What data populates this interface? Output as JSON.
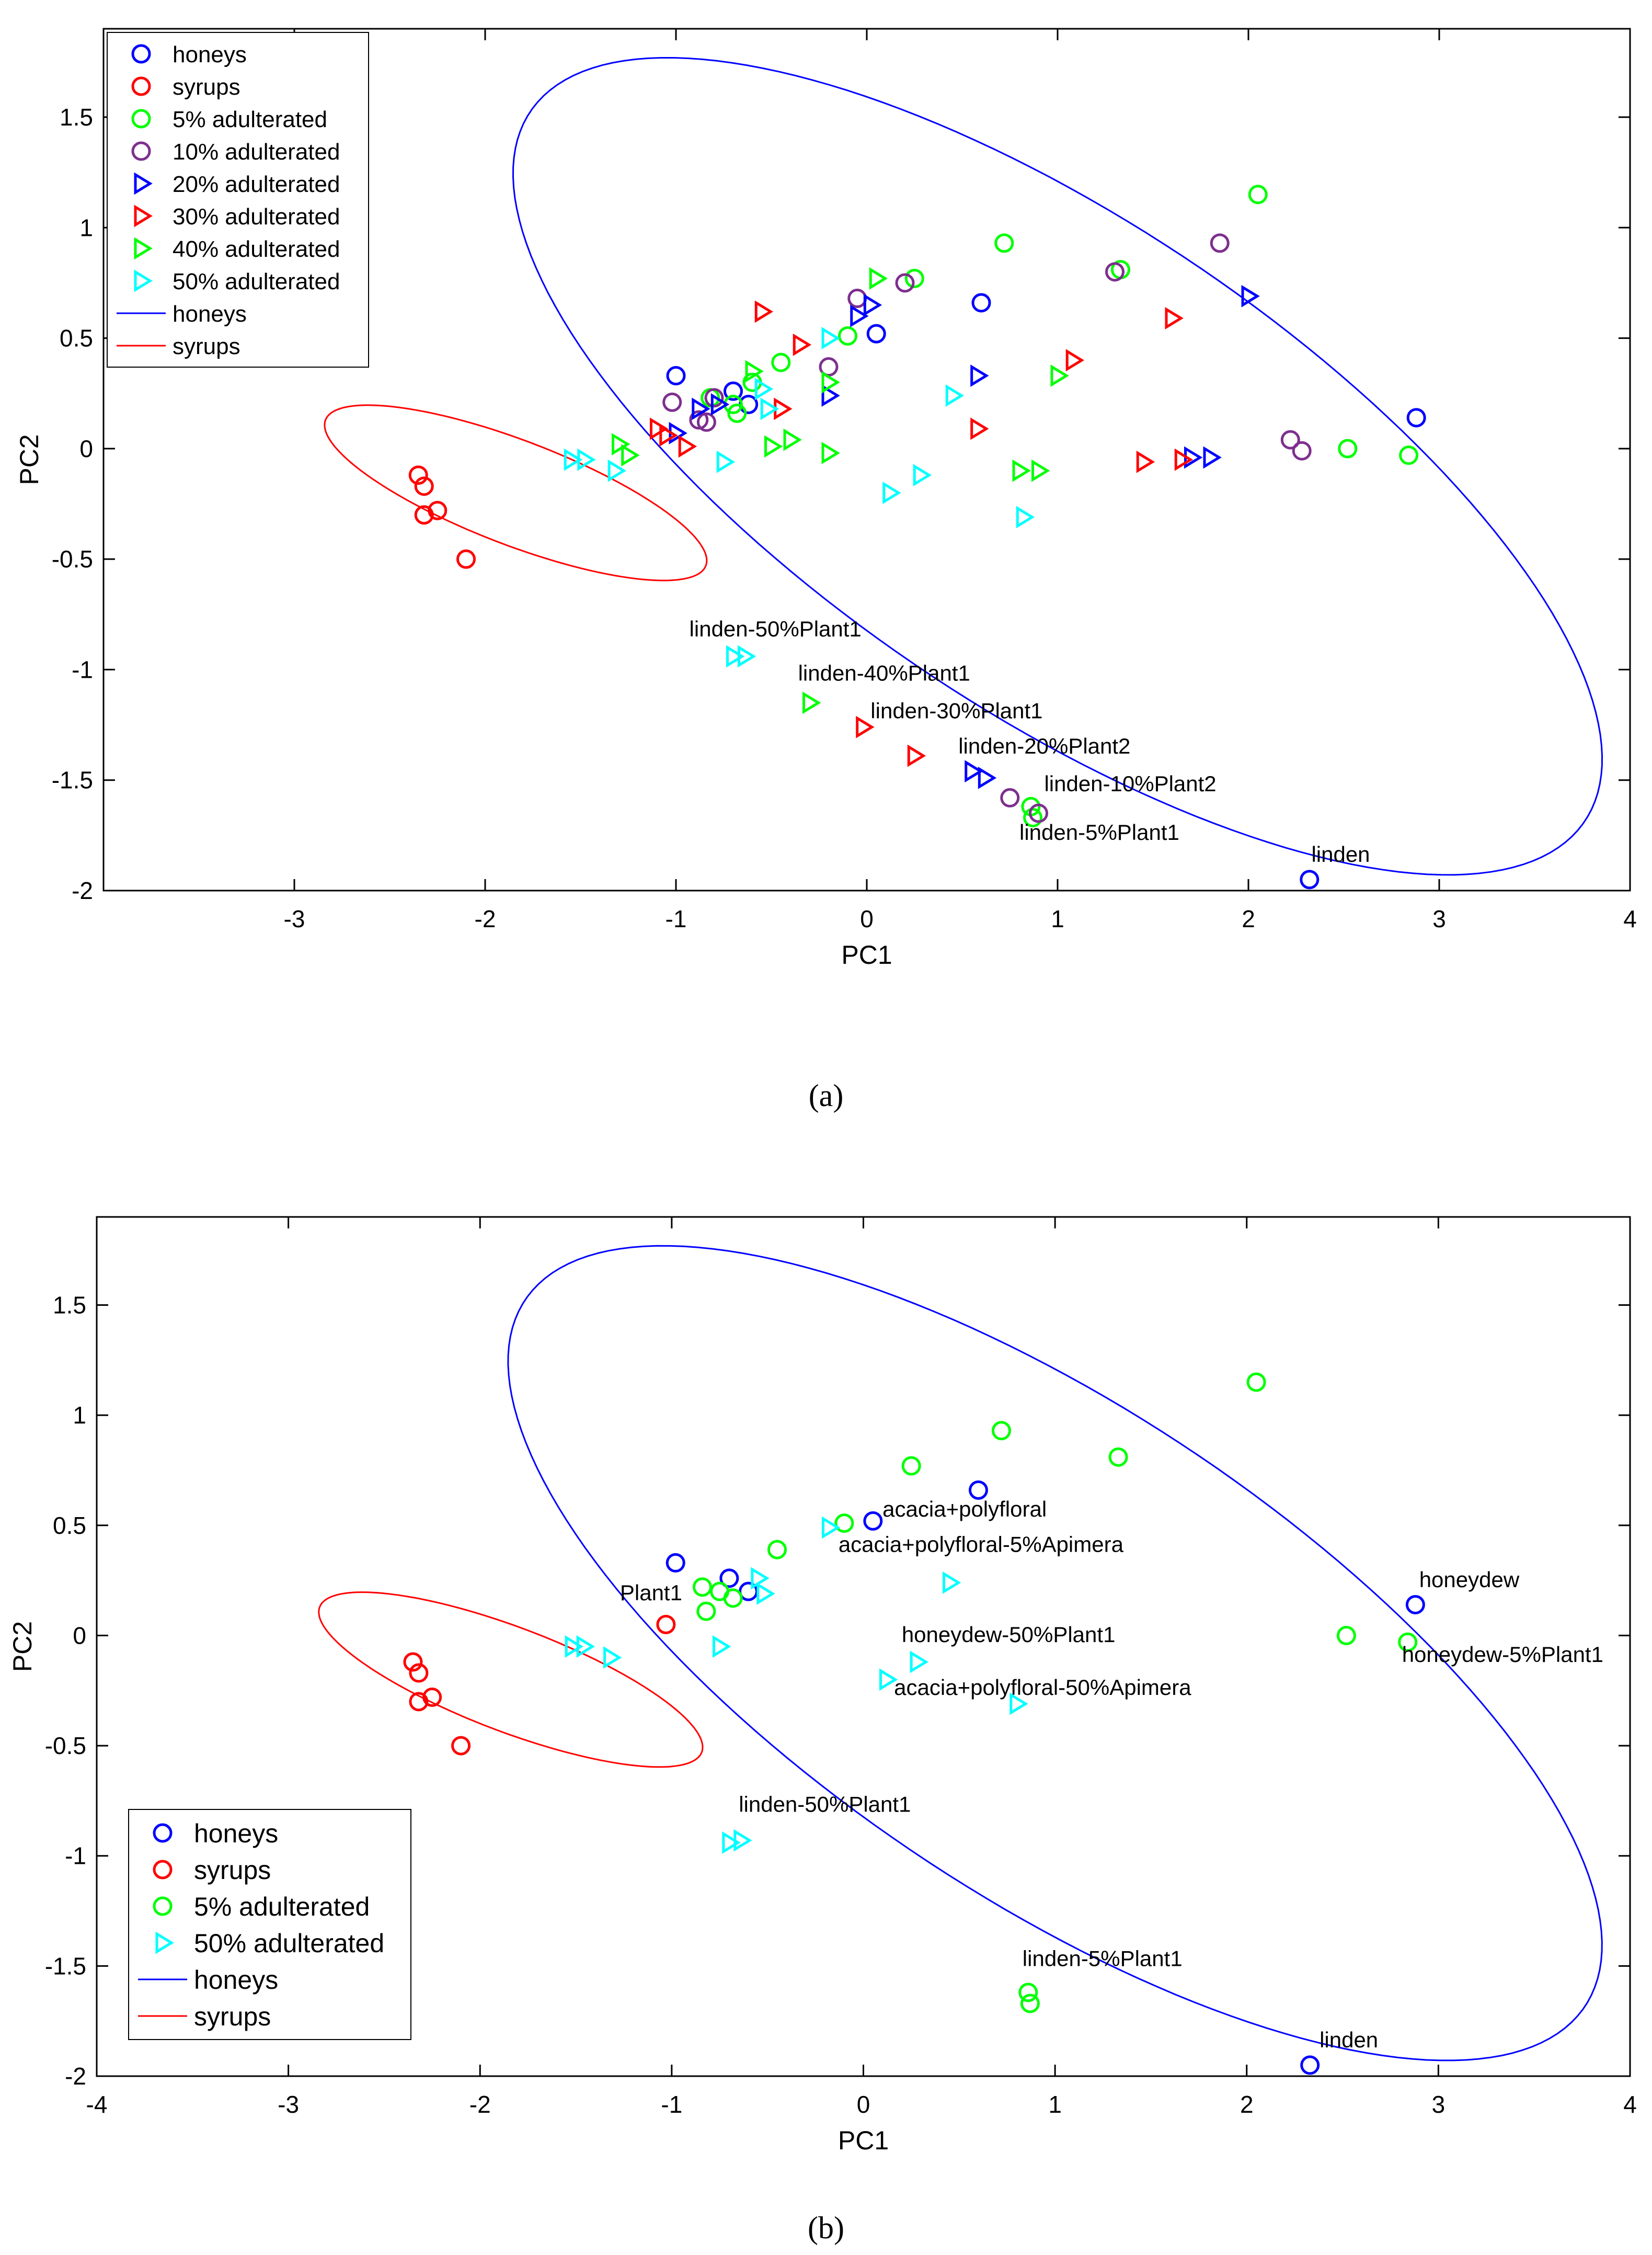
{
  "chart_data": [
    {
      "type": "scatter",
      "xlabel": "PC1",
      "ylabel": "PC2",
      "xlim": [
        -4,
        4
      ],
      "ylim": [
        -2,
        1.9
      ],
      "xticks": [
        "-3",
        "-2",
        "-1",
        "0",
        "1",
        "2",
        "3",
        "4"
      ],
      "yticks": [
        "1.5",
        "1",
        "0.5",
        "0",
        "-0.5",
        "-1",
        "-1.5",
        "-2"
      ],
      "legend_position": "top-left",
      "caption": "(a)",
      "series": [
        {
          "name": "honeys",
          "marker": "circle",
          "color": "#0000ff",
          "points": [
            [
              -1.0,
              0.33
            ],
            [
              -0.7,
              0.26
            ],
            [
              -0.62,
              0.2
            ],
            [
              0.05,
              0.52
            ],
            [
              0.6,
              0.66
            ],
            [
              2.88,
              0.14
            ],
            [
              2.32,
              -1.95
            ]
          ]
        },
        {
          "name": "syrups",
          "marker": "circle",
          "color": "#ff0000",
          "points": [
            [
              -2.35,
              -0.12
            ],
            [
              -2.32,
              -0.17
            ],
            [
              -2.32,
              -0.3
            ],
            [
              -2.25,
              -0.28
            ],
            [
              -2.1,
              -0.5
            ]
          ]
        },
        {
          "name": "5% adulterated",
          "marker": "circle",
          "color": "#00ff00",
          "points": [
            [
              -0.82,
              0.23
            ],
            [
              -0.7,
              0.2
            ],
            [
              -0.6,
              0.3
            ],
            [
              -0.45,
              0.39
            ],
            [
              -0.1,
              0.51
            ],
            [
              0.25,
              0.77
            ],
            [
              0.72,
              0.93
            ],
            [
              1.33,
              0.81
            ],
            [
              2.05,
              1.15
            ],
            [
              2.52,
              0.0
            ],
            [
              2.84,
              -0.03
            ],
            [
              0.86,
              -1.62
            ],
            [
              0.87,
              -1.67
            ],
            [
              -0.68,
              0.16
            ]
          ]
        },
        {
          "name": "10% adulterated",
          "marker": "circle",
          "color": "#7e2f8e",
          "points": [
            [
              -1.02,
              0.21
            ],
            [
              -0.84,
              0.12
            ],
            [
              -0.8,
              0.23
            ],
            [
              -0.2,
              0.37
            ],
            [
              -0.05,
              0.68
            ],
            [
              0.2,
              0.75
            ],
            [
              1.3,
              0.8
            ],
            [
              1.85,
              0.93
            ],
            [
              2.22,
              0.04
            ],
            [
              2.28,
              -0.01
            ],
            [
              0.75,
              -1.58
            ],
            [
              0.9,
              -1.65
            ],
            [
              -0.88,
              0.13
            ]
          ]
        },
        {
          "name": "20% adulterated",
          "marker": "triangle",
          "color": "#0000ff",
          "points": [
            [
              -0.88,
              0.18
            ],
            [
              -0.78,
              0.2
            ],
            [
              -0.2,
              0.24
            ],
            [
              -0.05,
              0.6
            ],
            [
              0.02,
              0.65
            ],
            [
              0.58,
              0.33
            ],
            [
              2.0,
              0.69
            ],
            [
              1.7,
              -0.04
            ],
            [
              1.8,
              -0.04
            ],
            [
              -1.0,
              0.07
            ],
            [
              0.55,
              -1.46
            ],
            [
              0.62,
              -1.49
            ]
          ]
        },
        {
          "name": "30% adulterated",
          "marker": "triangle",
          "color": "#ff0000",
          "points": [
            [
              -1.1,
              0.09
            ],
            [
              -1.05,
              0.06
            ],
            [
              -0.95,
              0.01
            ],
            [
              -0.55,
              0.62
            ],
            [
              -0.45,
              0.18
            ],
            [
              -0.35,
              0.47
            ],
            [
              0.58,
              0.09
            ],
            [
              1.08,
              0.4
            ],
            [
              1.45,
              -0.06
            ],
            [
              1.6,
              0.59
            ],
            [
              1.65,
              -0.05
            ],
            [
              -0.02,
              -1.26
            ],
            [
              0.25,
              -1.39
            ]
          ]
        },
        {
          "name": "40% adulterated",
          "marker": "triangle",
          "color": "#00ff00",
          "points": [
            [
              -1.3,
              0.02
            ],
            [
              -1.25,
              -0.03
            ],
            [
              -0.6,
              0.35
            ],
            [
              -0.5,
              0.01
            ],
            [
              -0.4,
              0.04
            ],
            [
              -0.2,
              -0.02
            ],
            [
              -0.2,
              0.3
            ],
            [
              0.05,
              0.77
            ],
            [
              0.8,
              -0.1
            ],
            [
              0.9,
              -0.1
            ],
            [
              1.0,
              0.33
            ],
            [
              -0.3,
              -1.15
            ]
          ]
        },
        {
          "name": "50% adulterated",
          "marker": "triangle",
          "color": "#00ffff",
          "points": [
            [
              -1.55,
              -0.05
            ],
            [
              -1.48,
              -0.05
            ],
            [
              -1.32,
              -0.1
            ],
            [
              -0.75,
              -0.06
            ],
            [
              -0.55,
              0.27
            ],
            [
              -0.52,
              0.18
            ],
            [
              -0.2,
              0.5
            ],
            [
              0.12,
              -0.2
            ],
            [
              0.28,
              -0.12
            ],
            [
              0.45,
              0.24
            ],
            [
              0.82,
              -0.31
            ],
            [
              -0.7,
              -0.94
            ],
            [
              -0.64,
              -0.94
            ]
          ]
        }
      ],
      "ellipses": [
        {
          "name": "honeys",
          "color": "#0000ff",
          "cx": 1.0,
          "cy": -0.08,
          "rx": 3.2,
          "ry": 1.15,
          "angle_deg": -29
        },
        {
          "name": "syrups",
          "color": "#ff0000",
          "cx": -1.84,
          "cy": -0.2,
          "rx": 1.05,
          "ry": 0.24,
          "angle_deg": -18
        }
      ],
      "annotations": [
        {
          "text": "linden-50%Plant1",
          "x": -0.93,
          "y": -0.85
        },
        {
          "text": "linden-40%Plant1",
          "x": -0.36,
          "y": -1.05
        },
        {
          "text": "linden-30%Plant1",
          "x": 0.02,
          "y": -1.22
        },
        {
          "text": "linden-20%Plant2",
          "x": 0.48,
          "y": -1.38
        },
        {
          "text": "linden-10%Plant2",
          "x": 0.93,
          "y": -1.55
        },
        {
          "text": "linden-5%Plant1",
          "x": 0.8,
          "y": -1.77
        },
        {
          "text": "linden",
          "x": 2.33,
          "y": -1.87
        }
      ]
    },
    {
      "type": "scatter",
      "xlabel": "PC1",
      "ylabel": "PC2",
      "xlim": [
        -4,
        4
      ],
      "ylim": [
        -2,
        1.9
      ],
      "xticks": [
        "-4",
        "-3",
        "-2",
        "-1",
        "0",
        "1",
        "2",
        "3",
        "4"
      ],
      "yticks": [
        "1.5",
        "1",
        "0.5",
        "0",
        "-0.5",
        "-1",
        "-1.5",
        "-2"
      ],
      "legend_position": "bottom-left",
      "caption": "(b)",
      "series": [
        {
          "name": "honeys",
          "marker": "circle",
          "color": "#0000ff",
          "points": [
            [
              -0.98,
              0.33
            ],
            [
              -0.7,
              0.26
            ],
            [
              -0.6,
              0.2
            ],
            [
              0.05,
              0.52
            ],
            [
              0.6,
              0.66
            ],
            [
              2.88,
              0.14
            ],
            [
              2.33,
              -1.95
            ]
          ]
        },
        {
          "name": "syrups",
          "marker": "circle",
          "color": "#ff0000",
          "points": [
            [
              -2.35,
              -0.12
            ],
            [
              -2.32,
              -0.17
            ],
            [
              -2.32,
              -0.3
            ],
            [
              -2.25,
              -0.28
            ],
            [
              -2.1,
              -0.5
            ],
            [
              -1.03,
              0.05
            ]
          ]
        },
        {
          "name": "5% adulterated",
          "marker": "circle",
          "color": "#00ff00",
          "points": [
            [
              -0.84,
              0.22
            ],
            [
              -0.75,
              0.2
            ],
            [
              -0.68,
              0.17
            ],
            [
              -0.82,
              0.11
            ],
            [
              -0.45,
              0.39
            ],
            [
              -0.1,
              0.51
            ],
            [
              0.25,
              0.77
            ],
            [
              0.72,
              0.93
            ],
            [
              1.33,
              0.81
            ],
            [
              2.05,
              1.15
            ],
            [
              2.52,
              0.0
            ],
            [
              2.84,
              -0.03
            ],
            [
              0.86,
              -1.62
            ],
            [
              0.87,
              -1.67
            ]
          ]
        },
        {
          "name": "50% adulterated",
          "marker": "triangle",
          "color": "#00ffff",
          "points": [
            [
              -1.52,
              -0.05
            ],
            [
              -1.46,
              -0.05
            ],
            [
              -1.32,
              -0.1
            ],
            [
              -0.75,
              -0.05
            ],
            [
              -0.55,
              0.26
            ],
            [
              -0.52,
              0.19
            ],
            [
              -0.18,
              0.49
            ],
            [
              0.12,
              -0.2
            ],
            [
              0.28,
              -0.12
            ],
            [
              0.45,
              0.24
            ],
            [
              0.8,
              -0.31
            ],
            [
              -0.7,
              -0.94
            ],
            [
              -0.64,
              -0.93
            ]
          ]
        }
      ],
      "ellipses": [
        {
          "name": "honeys",
          "color": "#0000ff",
          "cx": 1.0,
          "cy": -0.08,
          "rx": 3.2,
          "ry": 1.15,
          "angle_deg": -29
        },
        {
          "name": "syrups",
          "color": "#ff0000",
          "cx": -1.84,
          "cy": -0.2,
          "rx": 1.05,
          "ry": 0.24,
          "angle_deg": -18
        }
      ],
      "annotations": [
        {
          "text": "acacia+polyfloral",
          "x": 0.1,
          "y": 0.54
        },
        {
          "text": "acacia+polyfloral-5%Apimera",
          "x": -0.13,
          "y": 0.38
        },
        {
          "text": "Plant1",
          "x": -1.27,
          "y": 0.16
        },
        {
          "text": "honeydew",
          "x": 2.9,
          "y": 0.22
        },
        {
          "text": "honeydew-50%Plant1",
          "x": 0.2,
          "y": -0.03
        },
        {
          "text": "honeydew-5%Plant1",
          "x": 2.81,
          "y": -0.12
        },
        {
          "text": "acacia+polyfloral-50%Apimera",
          "x": 0.16,
          "y": -0.27
        },
        {
          "text": "linden-50%Plant1",
          "x": -0.65,
          "y": -0.8
        },
        {
          "text": "linden-5%Plant1",
          "x": 0.83,
          "y": -1.5
        },
        {
          "text": "linden",
          "x": 2.38,
          "y": -1.87
        }
      ]
    }
  ]
}
